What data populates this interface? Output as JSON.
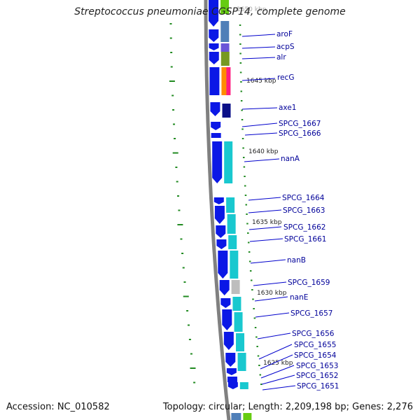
{
  "title": "Streptococcus pneumoniae CGSP14, complete genome",
  "footer": {
    "accession": "Accession: NC_010582",
    "summary": "Topology: circular; Length: 2,209,198 bp; Genes: 2,276"
  },
  "colors": {
    "backbone": "#808080",
    "tick": "#228B22",
    "label_line": "#0000cc",
    "label_text": "#000099",
    "blue": "#0b18e6",
    "cyan": "#19c8cf",
    "grey": "#bdbdbd",
    "navy": "#0a0f88",
    "green": "#66cc11",
    "olive": "#779922",
    "purple": "#6a55d8",
    "steel": "#4f7fb8",
    "orange": "#ff8c00",
    "magenta": "#ff1c80"
  },
  "scale_labels": [
    {
      "text": "1650 kbp"
    },
    {
      "text": "1645 kbp"
    },
    {
      "text": "1640 kbp"
    },
    {
      "text": "1635 kbp"
    },
    {
      "text": "1630 kbp"
    },
    {
      "text": "1625 kbp"
    }
  ],
  "gene_labels": [
    "aroF",
    "acpS",
    "alr",
    "recG",
    "axe1",
    "SPCG_1667",
    "SPCG_1666",
    "nanA",
    "SPCG_1664",
    "SPCG_1663",
    "SPCG_1662",
    "SPCG_1661",
    "nanB",
    "SPCG_1659",
    "nanE",
    "SPCG_1657",
    "SPCG_1656",
    "SPCG_1655",
    "SPCG_1654",
    "SPCG_1653",
    "SPCG_1652",
    "SPCG_1651"
  ]
}
